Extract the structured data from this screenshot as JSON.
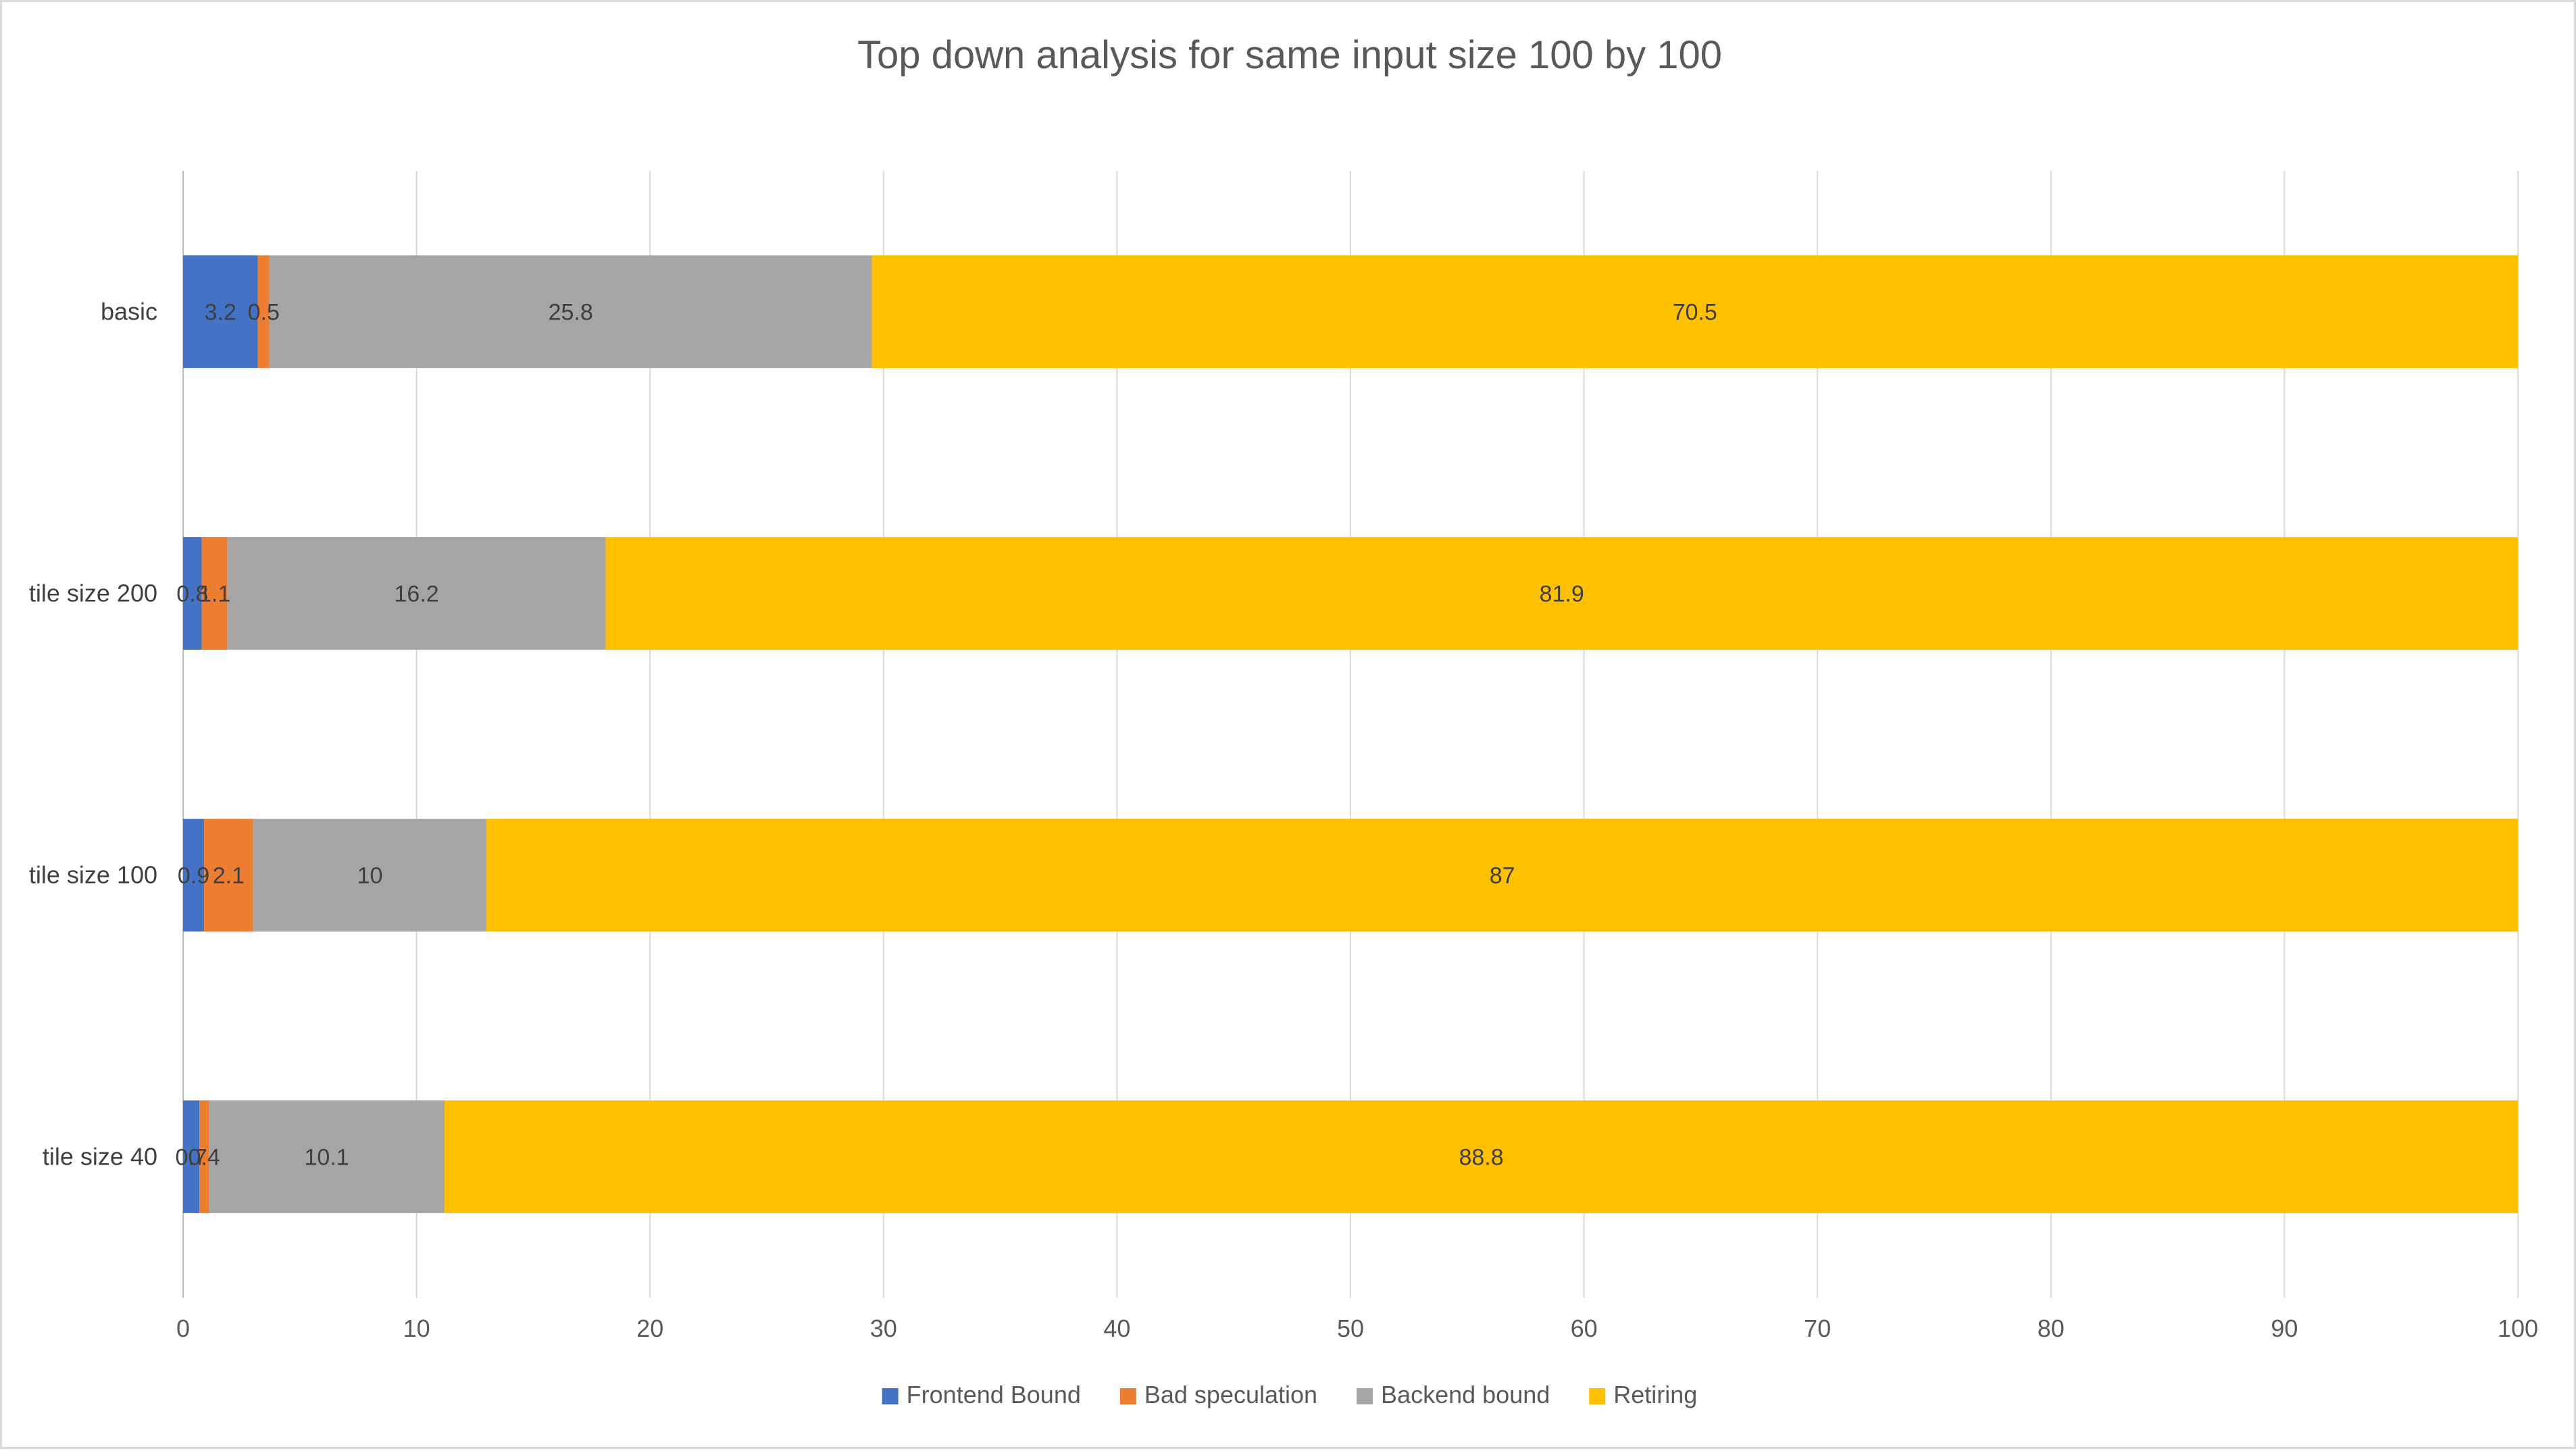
{
  "chart_data": {
    "type": "bar",
    "orientation": "horizontal",
    "stacked": true,
    "title": "Top down analysis for same input size 100 by 100",
    "xlabel": "",
    "ylabel": "",
    "xlim": [
      0,
      100
    ],
    "xticks": [
      "0",
      "10",
      "20",
      "30",
      "40",
      "50",
      "60",
      "70",
      "80",
      "90",
      "100"
    ],
    "grid": "vertical",
    "legend_position": "bottom",
    "categories": [
      "basic",
      "tile size 200",
      "tile size 100",
      "tile size 40"
    ],
    "series": [
      {
        "name": "Frontend Bound",
        "color": "#4472C4",
        "values": [
          3.2,
          0.8,
          0.9,
          0.7
        ],
        "labels": [
          "3.2",
          "0.8",
          "0.9",
          "0.7"
        ]
      },
      {
        "name": "Bad speculation",
        "color": "#ED7D31",
        "values": [
          0.5,
          1.1,
          2.1,
          0.4
        ],
        "labels": [
          "0.5",
          "1.1",
          "2.1",
          "0.4"
        ]
      },
      {
        "name": "Backend bound",
        "color": "#A5A5A5",
        "values": [
          25.8,
          16.2,
          10,
          10.1
        ],
        "labels": [
          "25.8",
          "16.2",
          "10",
          "10.1"
        ]
      },
      {
        "name": "Retiring",
        "color": "#FFC000",
        "values": [
          70.5,
          81.9,
          87,
          88.8
        ],
        "labels": [
          "70.5",
          "81.9",
          "87",
          "88.8"
        ]
      }
    ]
  }
}
